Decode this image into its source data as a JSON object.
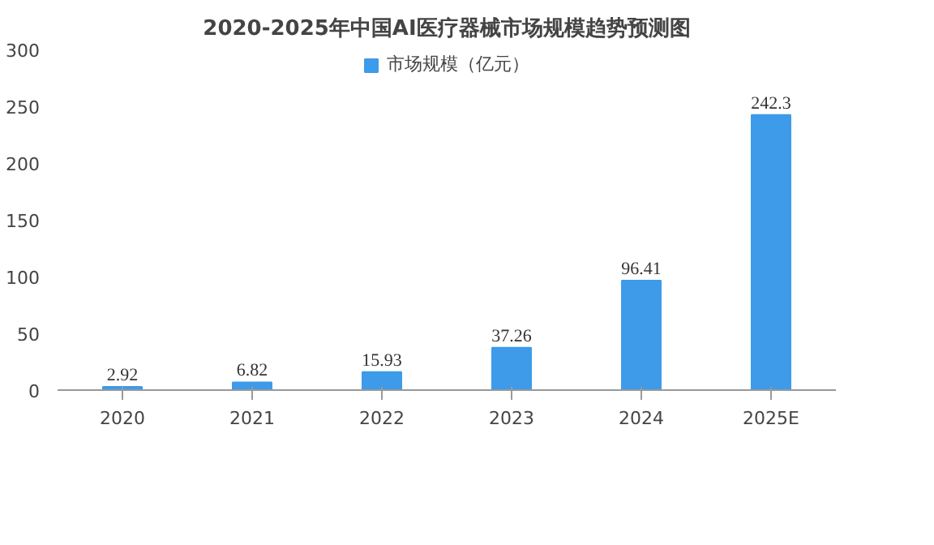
{
  "chart_data": {
    "type": "bar",
    "title": "2020-2025年中国AI医疗器械市场规模趋势预测图",
    "categories": [
      "2020",
      "2021",
      "2022",
      "2023",
      "2024",
      "2025E"
    ],
    "series": [
      {
        "name": "市场规模（亿元）",
        "color": "#3d9be9",
        "values": [
          2.92,
          6.82,
          15.93,
          37.26,
          96.41,
          242.3
        ]
      }
    ],
    "ylim": [
      0,
      300
    ],
    "yticks": [
      0,
      50,
      100,
      150,
      200,
      250,
      300
    ],
    "grid": false,
    "legend": "top",
    "data_labels": true
  }
}
